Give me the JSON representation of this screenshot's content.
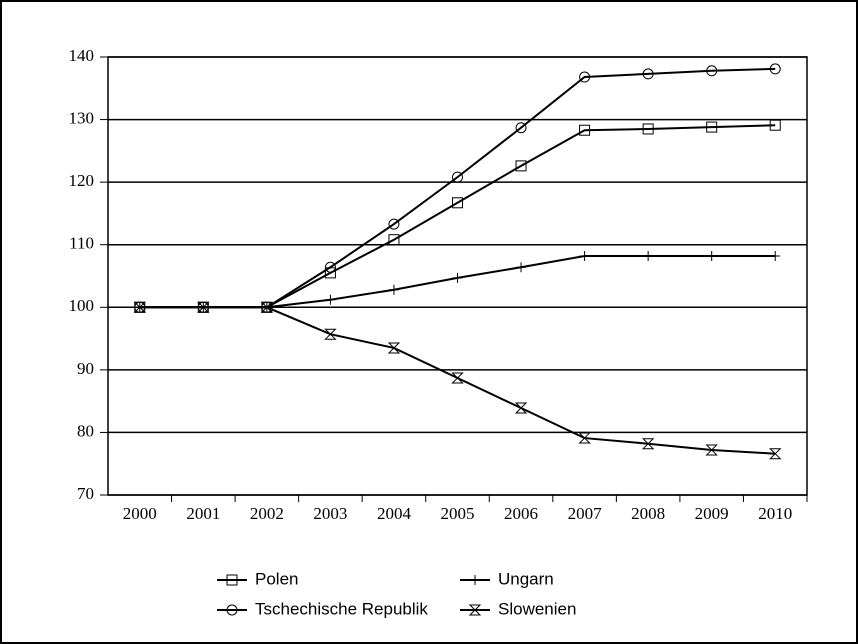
{
  "chart_data": {
    "type": "line",
    "categories": [
      "2000",
      "2001",
      "2002",
      "2003",
      "2004",
      "2005",
      "2006",
      "2007",
      "2008",
      "2009",
      "2010"
    ],
    "series": [
      {
        "name": "Polen",
        "color": "#000000",
        "marker": "square",
        "values": [
          100,
          100,
          100,
          105.5,
          110.8,
          116.7,
          122.6,
          128.3,
          128.5,
          128.8,
          129.1
        ]
      },
      {
        "name": "Ungarn",
        "color": "#000000",
        "marker": "plus",
        "values": [
          100,
          100,
          100,
          101.2,
          102.8,
          104.7,
          106.4,
          108.2,
          108.2,
          108.2,
          108.2
        ]
      },
      {
        "name": "Tschechische Republik",
        "color": "#000000",
        "marker": "circle",
        "values": [
          100,
          100,
          100,
          106.4,
          113.3,
          120.8,
          128.7,
          136.8,
          137.3,
          137.8,
          138.1
        ]
      },
      {
        "name": "Slowenien",
        "color": "#000000",
        "marker": "hourglass",
        "values": [
          100,
          100,
          100,
          95.7,
          93.5,
          88.7,
          83.9,
          79.1,
          78.2,
          77.2,
          76.6
        ]
      }
    ],
    "ylim": [
      70,
      140
    ],
    "yticks": [
      70,
      80,
      90,
      100,
      110,
      120,
      130,
      140
    ],
    "grid": true
  }
}
